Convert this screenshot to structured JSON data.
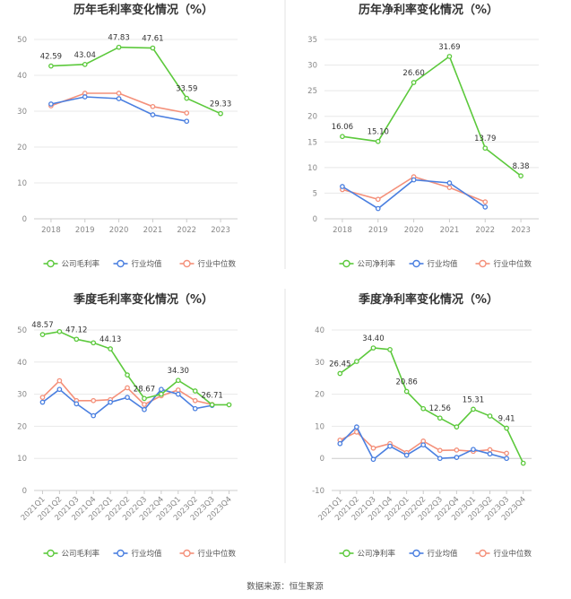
{
  "source_text": "数据来源：恒生聚源",
  "colors": {
    "company": "#5cc93c",
    "industry_avg": "#4a7fe0",
    "industry_median": "#f4907a",
    "grid": "#e8e8e8",
    "divider": "#e3e3e3"
  },
  "chart_data": [
    {
      "type": "line",
      "title": "历年毛利率变化情况（%）",
      "xlabel": "",
      "ylabel": "",
      "categories": [
        "2018",
        "2019",
        "2020",
        "2021",
        "2022",
        "2023"
      ],
      "ylim": [
        0,
        50
      ],
      "yticks": [
        0,
        10,
        20,
        30,
        40,
        50
      ],
      "grid": true,
      "legend_position": "bottom",
      "series": [
        {
          "name": "公司毛利率",
          "color": "#5cc93c",
          "values": [
            42.59,
            43.04,
            47.83,
            47.61,
            33.59,
            29.33
          ],
          "labels": [
            "42.59",
            "43.04",
            "47.83",
            "47.61",
            "33.59",
            "29.33"
          ]
        },
        {
          "name": "行业均值",
          "color": "#4a7fe0",
          "values": [
            32.0,
            34.0,
            33.5,
            29.0,
            27.2,
            null
          ],
          "labels": []
        },
        {
          "name": "行业中位数",
          "color": "#f4907a",
          "values": [
            31.5,
            35.0,
            35.0,
            31.3,
            29.5,
            null
          ],
          "labels": []
        }
      ]
    },
    {
      "type": "line",
      "title": "历年净利率变化情况（%）",
      "xlabel": "",
      "ylabel": "",
      "categories": [
        "2018",
        "2019",
        "2020",
        "2021",
        "2022",
        "2023"
      ],
      "ylim": [
        0,
        35
      ],
      "yticks": [
        0,
        5,
        10,
        15,
        20,
        25,
        30,
        35
      ],
      "grid": true,
      "legend_position": "bottom",
      "series": [
        {
          "name": "公司净利率",
          "color": "#5cc93c",
          "values": [
            16.06,
            15.1,
            26.6,
            31.69,
            13.79,
            8.38
          ],
          "labels": [
            "16.06",
            "15.10",
            "26.60",
            "31.69",
            "13.79",
            "8.38"
          ]
        },
        {
          "name": "行业均值",
          "color": "#4a7fe0",
          "values": [
            6.3,
            2.0,
            7.6,
            7.0,
            2.3,
            null
          ],
          "labels": []
        },
        {
          "name": "行业中位数",
          "color": "#f4907a",
          "values": [
            5.7,
            3.8,
            8.2,
            6.1,
            3.3,
            null
          ],
          "labels": []
        }
      ]
    },
    {
      "type": "line",
      "title": "季度毛利率变化情况（%）",
      "xlabel": "",
      "ylabel": "",
      "categories": [
        "2021Q1",
        "2021Q2",
        "2021Q3",
        "2021Q4",
        "2022Q1",
        "2022Q2",
        "2022Q3",
        "2022Q4",
        "2023Q1",
        "2023Q2",
        "2023Q3",
        "2023Q4"
      ],
      "ylim": [
        0,
        50
      ],
      "yticks": [
        0,
        10,
        20,
        30,
        40,
        50
      ],
      "grid": true,
      "legend_position": "bottom",
      "series": [
        {
          "name": "公司毛利率",
          "color": "#5cc93c",
          "values": [
            48.57,
            49.5,
            47.12,
            46.0,
            44.13,
            36.0,
            28.67,
            30.0,
            34.3,
            31.0,
            26.71,
            26.7
          ],
          "labels": [
            "48.57",
            "",
            "47.12",
            "",
            "44.13",
            "",
            "28.67",
            "",
            "34.30",
            "",
            "26.71",
            ""
          ]
        },
        {
          "name": "行业均值",
          "color": "#4a7fe0",
          "values": [
            27.5,
            31.5,
            27.0,
            23.3,
            27.5,
            29.0,
            25.2,
            31.5,
            30.0,
            25.5,
            26.5,
            null
          ],
          "labels": []
        },
        {
          "name": "行业中位数",
          "color": "#f4907a",
          "values": [
            29.0,
            34.2,
            28.0,
            28.0,
            28.3,
            32.0,
            26.8,
            29.5,
            31.3,
            28.0,
            26.8,
            null
          ],
          "labels": []
        }
      ]
    },
    {
      "type": "line",
      "title": "季度净利率变化情况（%）",
      "xlabel": "",
      "ylabel": "",
      "categories": [
        "2021Q1",
        "2021Q2",
        "2021Q3",
        "2021Q4",
        "2022Q1",
        "2022Q2",
        "2022Q3",
        "2022Q4",
        "2023Q1",
        "2023Q2",
        "2023Q3",
        "2023Q4"
      ],
      "ylim": [
        -10,
        40
      ],
      "yticks": [
        -10,
        0,
        10,
        20,
        30,
        40
      ],
      "grid": true,
      "legend_position": "bottom",
      "series": [
        {
          "name": "公司净利率",
          "color": "#5cc93c",
          "values": [
            26.45,
            30.2,
            34.4,
            33.9,
            20.86,
            15.5,
            12.56,
            9.8,
            15.31,
            13.2,
            9.41,
            -1.5
          ],
          "labels": [
            "26.45",
            "",
            "34.40",
            "",
            "20.86",
            "",
            "12.56",
            "",
            "15.31",
            "",
            "9.41",
            ""
          ]
        },
        {
          "name": "行业均值",
          "color": "#4a7fe0",
          "values": [
            4.6,
            9.8,
            -0.3,
            3.8,
            1.0,
            4.2,
            0.0,
            0.3,
            2.8,
            1.4,
            0.0,
            null
          ],
          "labels": []
        },
        {
          "name": "行业中位数",
          "color": "#f4907a",
          "values": [
            5.7,
            8.2,
            3.2,
            4.6,
            1.8,
            5.4,
            2.5,
            2.6,
            2.2,
            2.7,
            1.6,
            null
          ],
          "labels": []
        }
      ]
    }
  ]
}
